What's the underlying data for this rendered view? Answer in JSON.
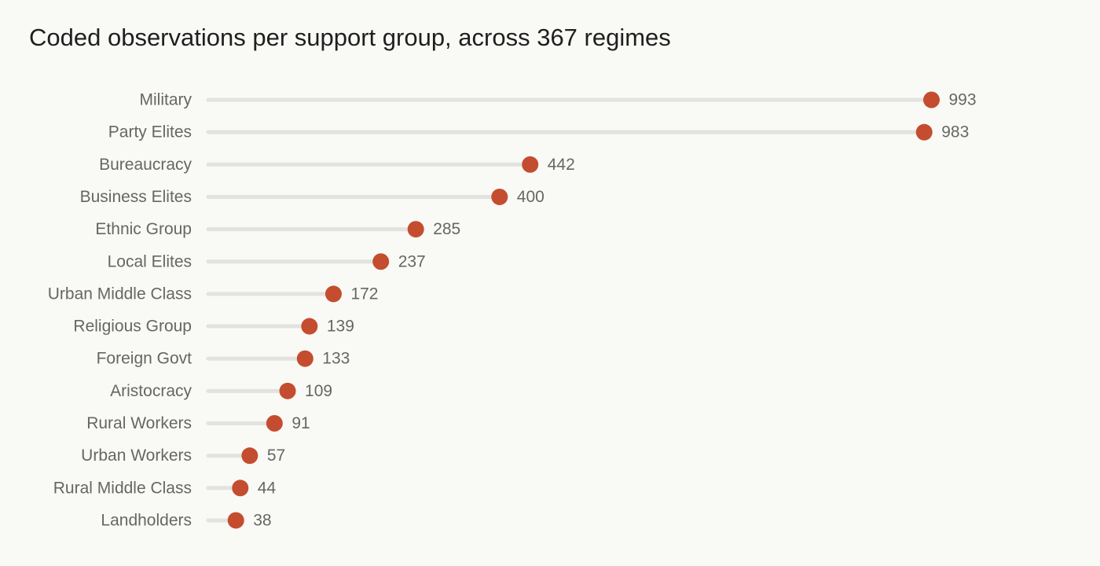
{
  "chart_data": {
    "type": "lollipop",
    "title": "Coded observations per support group, across 367 regimes",
    "xlabel": "",
    "ylabel": "",
    "categories": [
      "Military",
      "Party Elites",
      "Bureaucracy",
      "Business Elites",
      "Ethnic Group",
      "Local Elites",
      "Urban Middle Class",
      "Religious Group",
      "Foreign Govt",
      "Aristocracy",
      "Rural Workers",
      "Urban Workers",
      "Rural Middle Class",
      "Landholders"
    ],
    "values": [
      993,
      983,
      442,
      400,
      285,
      237,
      172,
      139,
      133,
      109,
      91,
      57,
      44,
      38
    ],
    "xlim": [
      0,
      1000
    ],
    "grid": false,
    "legend": "none",
    "colors": {
      "dot": "#c44d2f",
      "stem": "#e2e2df",
      "label": "#666666",
      "title": "#1f1f1f",
      "background": "#f9f9f6"
    }
  }
}
